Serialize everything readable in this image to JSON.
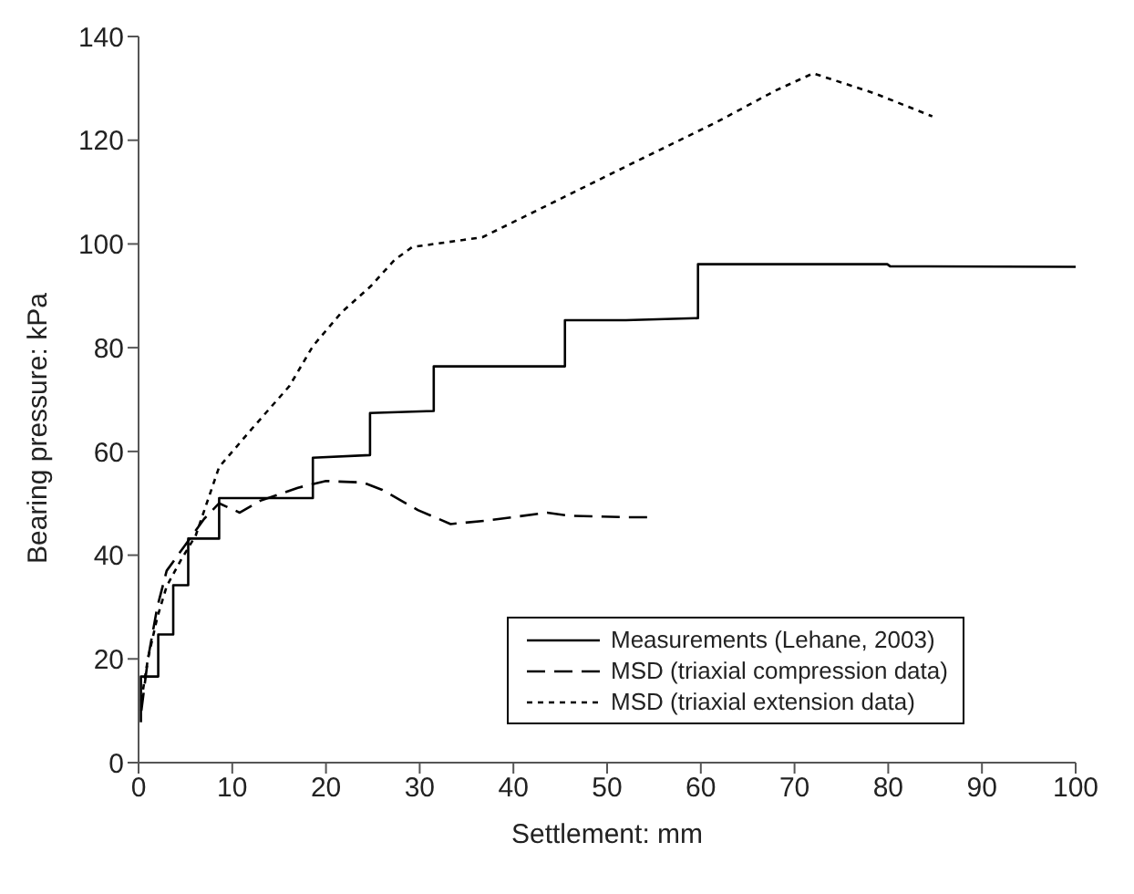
{
  "chart_data": {
    "type": "line",
    "xlabel": "Settlement: mm",
    "ylabel": "Bearing pressure: kPa",
    "xlim": [
      0,
      100
    ],
    "xticks": [
      0,
      10,
      20,
      30,
      40,
      50,
      60,
      70,
      80,
      90,
      100
    ],
    "ylim": [
      0,
      140
    ],
    "yticks": [
      0,
      20,
      40,
      60,
      80,
      100,
      120,
      140
    ],
    "grid": false,
    "legend": "bottom right",
    "marker": "none",
    "series": [
      {
        "name": "Measurements (Lehane, 2003)",
        "color": "#000000",
        "line_style": "solid",
        "x": [
          0.25,
          0.25,
          2.1,
          2.1,
          3.7,
          3.7,
          5.3,
          5.3,
          8.6,
          8.6,
          18.6,
          18.6,
          24.7,
          24.7,
          31.5,
          31.5,
          45.5,
          45.5,
          52,
          59.7,
          59.7,
          79.9,
          80.2,
          100
        ],
        "values": [
          7.8,
          16.6,
          16.6,
          24.7,
          24.7,
          34.2,
          34.2,
          43.2,
          43.2,
          51,
          51,
          58.8,
          59.3,
          67.4,
          67.8,
          76.4,
          76.4,
          85.3,
          85.3,
          85.7,
          96.1,
          96.1,
          95.7,
          95.6
        ]
      },
      {
        "name": "MSD (triaxial compression data)",
        "color": "#000000",
        "line_style": "dashed",
        "x": [
          0.3,
          1,
          2,
          3,
          5,
          7,
          8.6,
          10.8,
          13,
          17,
          20,
          24,
          26,
          29.8,
          33.3,
          37.3,
          43.6,
          46,
          52.3,
          54.6
        ],
        "values": [
          10,
          20,
          30,
          37,
          42,
          47,
          50,
          48.2,
          50.5,
          53,
          54.3,
          54,
          52.6,
          48.7,
          46,
          46.7,
          48.2,
          47.6,
          47.3,
          47.3
        ]
      },
      {
        "name": "MSD (triaxial extension data)",
        "color": "#000000",
        "line_style": "dotted",
        "x": [
          0.3,
          1,
          2,
          3,
          4.5,
          6.1,
          8.6,
          12.3,
          16.1,
          18.6,
          21.7,
          24.8,
          27.3,
          29.2,
          36.7,
          43,
          52.3,
          61.7,
          68,
          72,
          78.6,
          84.7
        ],
        "values": [
          12,
          20,
          28,
          34,
          39,
          43.8,
          57,
          64.8,
          72.6,
          80.3,
          86.9,
          91.9,
          96.9,
          99.4,
          101.3,
          106.9,
          115.2,
          123.5,
          129.6,
          132.9,
          129,
          124.6
        ]
      }
    ]
  }
}
